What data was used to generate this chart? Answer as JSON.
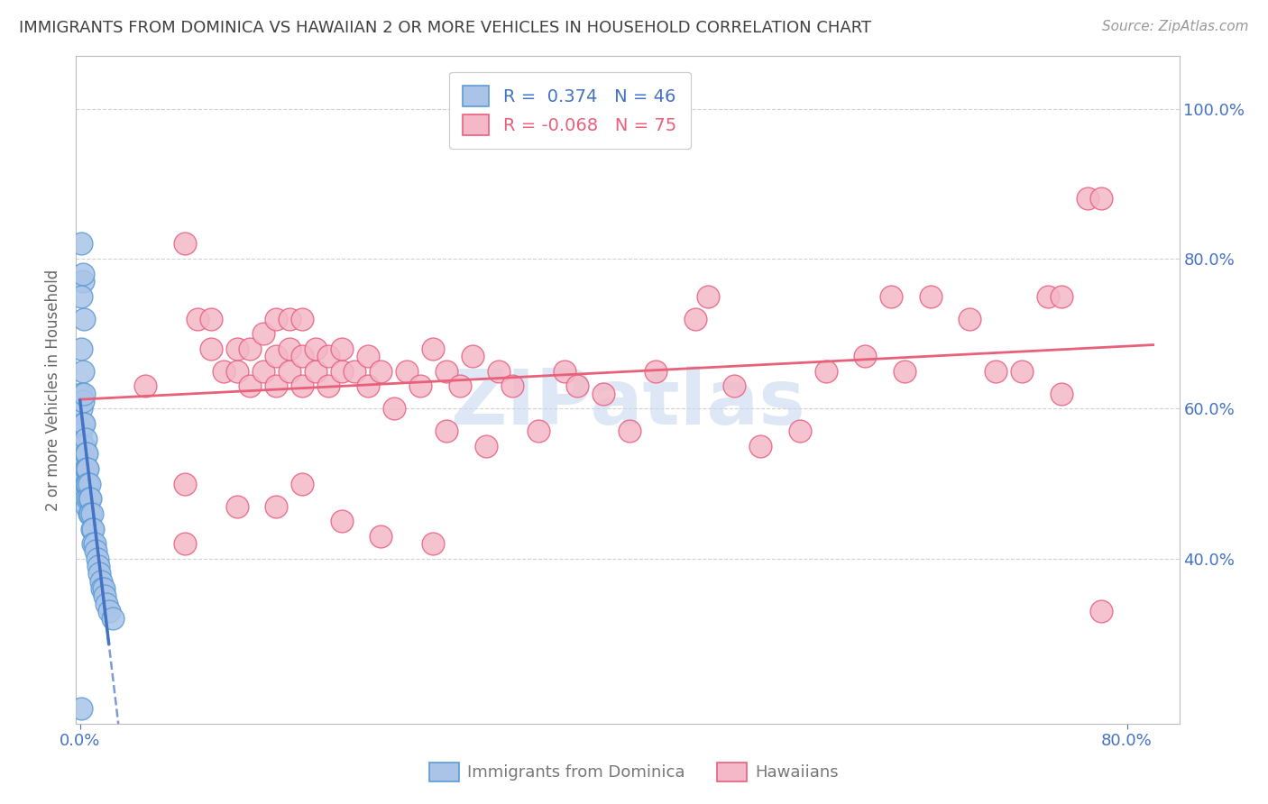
{
  "title": "IMMIGRANTS FROM DOMINICA VS HAWAIIAN 2 OR MORE VEHICLES IN HOUSEHOLD CORRELATION CHART",
  "source": "Source: ZipAtlas.com",
  "ylabel": "2 or more Vehicles in Household",
  "ytick_labels": [
    "100.0%",
    "80.0%",
    "60.0%",
    "40.0%"
  ],
  "ytick_values": [
    1.0,
    0.8,
    0.6,
    0.4
  ],
  "xlim": [
    -0.003,
    0.84
  ],
  "ylim": [
    0.18,
    1.07
  ],
  "legend_blue_r": " 0.374",
  "legend_blue_n": "46",
  "legend_pink_r": "-0.068",
  "legend_pink_n": "75",
  "watermark": "ZIPatlas",
  "blue_scatter_x": [
    0.001,
    0.001,
    0.001,
    0.001,
    0.002,
    0.002,
    0.002,
    0.002,
    0.003,
    0.003,
    0.003,
    0.003,
    0.004,
    0.004,
    0.004,
    0.004,
    0.004,
    0.005,
    0.005,
    0.005,
    0.005,
    0.006,
    0.006,
    0.006,
    0.007,
    0.007,
    0.007,
    0.008,
    0.008,
    0.009,
    0.009,
    0.01,
    0.01,
    0.011,
    0.012,
    0.013,
    0.014,
    0.015,
    0.016,
    0.017,
    0.018,
    0.019,
    0.02,
    0.022,
    0.025,
    0.001
  ],
  "blue_scatter_y": [
    0.62,
    0.6,
    0.57,
    0.55,
    0.61,
    0.58,
    0.55,
    0.53,
    0.58,
    0.55,
    0.53,
    0.51,
    0.56,
    0.54,
    0.52,
    0.5,
    0.48,
    0.54,
    0.52,
    0.5,
    0.47,
    0.52,
    0.5,
    0.48,
    0.5,
    0.48,
    0.46,
    0.48,
    0.46,
    0.46,
    0.44,
    0.44,
    0.42,
    0.42,
    0.41,
    0.4,
    0.39,
    0.38,
    0.37,
    0.36,
    0.36,
    0.35,
    0.34,
    0.33,
    0.32,
    0.2
  ],
  "blue_scatter_x2": [
    0.001,
    0.002,
    0.003,
    0.001,
    0.002,
    0.003,
    0.002,
    0.001
  ],
  "blue_scatter_y2": [
    0.82,
    0.77,
    0.72,
    0.68,
    0.65,
    0.62,
    0.78,
    0.75
  ],
  "pink_scatter_x": [
    0.05,
    0.08,
    0.09,
    0.1,
    0.1,
    0.11,
    0.12,
    0.12,
    0.13,
    0.13,
    0.14,
    0.14,
    0.15,
    0.15,
    0.15,
    0.16,
    0.16,
    0.16,
    0.17,
    0.17,
    0.17,
    0.18,
    0.18,
    0.19,
    0.19,
    0.2,
    0.2,
    0.21,
    0.22,
    0.22,
    0.23,
    0.24,
    0.25,
    0.26,
    0.27,
    0.28,
    0.28,
    0.29,
    0.3,
    0.31,
    0.32,
    0.33,
    0.35,
    0.37,
    0.38,
    0.4,
    0.42,
    0.44,
    0.47,
    0.48,
    0.5,
    0.52,
    0.55,
    0.57,
    0.6,
    0.62,
    0.63,
    0.65,
    0.68,
    0.7,
    0.72,
    0.74,
    0.75,
    0.77,
    0.78,
    0.08,
    0.12,
    0.15,
    0.17,
    0.2,
    0.23,
    0.27,
    0.08,
    0.75,
    0.78
  ],
  "pink_scatter_y": [
    0.63,
    0.82,
    0.72,
    0.68,
    0.72,
    0.65,
    0.65,
    0.68,
    0.63,
    0.68,
    0.65,
    0.7,
    0.63,
    0.67,
    0.72,
    0.65,
    0.68,
    0.72,
    0.63,
    0.67,
    0.72,
    0.65,
    0.68,
    0.63,
    0.67,
    0.65,
    0.68,
    0.65,
    0.63,
    0.67,
    0.65,
    0.6,
    0.65,
    0.63,
    0.68,
    0.57,
    0.65,
    0.63,
    0.67,
    0.55,
    0.65,
    0.63,
    0.57,
    0.65,
    0.63,
    0.62,
    0.57,
    0.65,
    0.72,
    0.75,
    0.63,
    0.55,
    0.57,
    0.65,
    0.67,
    0.75,
    0.65,
    0.75,
    0.72,
    0.65,
    0.65,
    0.75,
    0.75,
    0.88,
    0.88,
    0.5,
    0.47,
    0.47,
    0.5,
    0.45,
    0.43,
    0.42,
    0.42,
    0.62,
    0.33
  ],
  "blue_color": "#aac4e8",
  "blue_edge_color": "#5b9bd5",
  "pink_color": "#f4b8c8",
  "pink_edge_color": "#e86080",
  "regression_blue_color": "#4472c4",
  "regression_pink_color": "#e8607a",
  "grid_color": "#cccccc",
  "axis_color": "#bbbbbb",
  "tick_label_color": "#4472c4",
  "title_color": "#404040",
  "watermark_color": "#c8d8f0"
}
